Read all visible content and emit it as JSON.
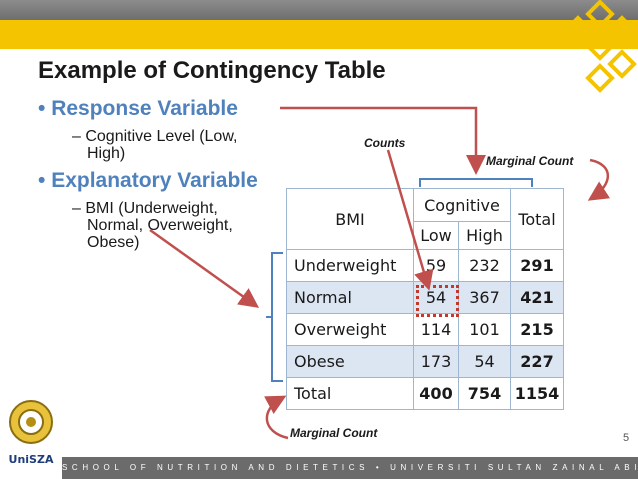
{
  "slide": {
    "title": "Example of Contingency Table",
    "bullets": [
      {
        "heading": "Response Variable",
        "sub_lines": [
          "– Cognitive Level (Low,",
          "High)"
        ]
      },
      {
        "heading": "Explanatory Variable",
        "sub_lines": [
          "– BMI (Underweight,",
          "Normal, Overweight,",
          "Obese)"
        ]
      }
    ],
    "annotations": {
      "counts": "Counts",
      "marginal_top": "Marginal Count",
      "marginal_bottom": "Marginal Count"
    },
    "page_number": "5",
    "footer_text": "SCHOOL OF NUTRITION AND DIETETICS • UNIVERSITI SULTAN ZAINAL ABIDIN",
    "logo_text": "UniSZA"
  },
  "table": {
    "header": {
      "bmi": "BMI",
      "cognitive": "Cognitive",
      "low": "Low",
      "high": "High",
      "total": "Total"
    },
    "rows": [
      {
        "label": "Underweight",
        "low": "59",
        "high": "232",
        "total": "291"
      },
      {
        "label": "Normal",
        "low": "54",
        "high": "367",
        "total": "421"
      },
      {
        "label": "Overweight",
        "low": "114",
        "high": "101",
        "total": "215"
      },
      {
        "label": "Obese",
        "low": "173",
        "high": "54",
        "total": "227"
      }
    ],
    "totals": {
      "label": "Total",
      "low": "400",
      "high": "754",
      "total": "1154"
    }
  },
  "colors": {
    "accent": "#4f81bd",
    "bar_yellow": "#f5c400",
    "arrow": "#c0504d",
    "table_shade": "#dce6f2"
  }
}
